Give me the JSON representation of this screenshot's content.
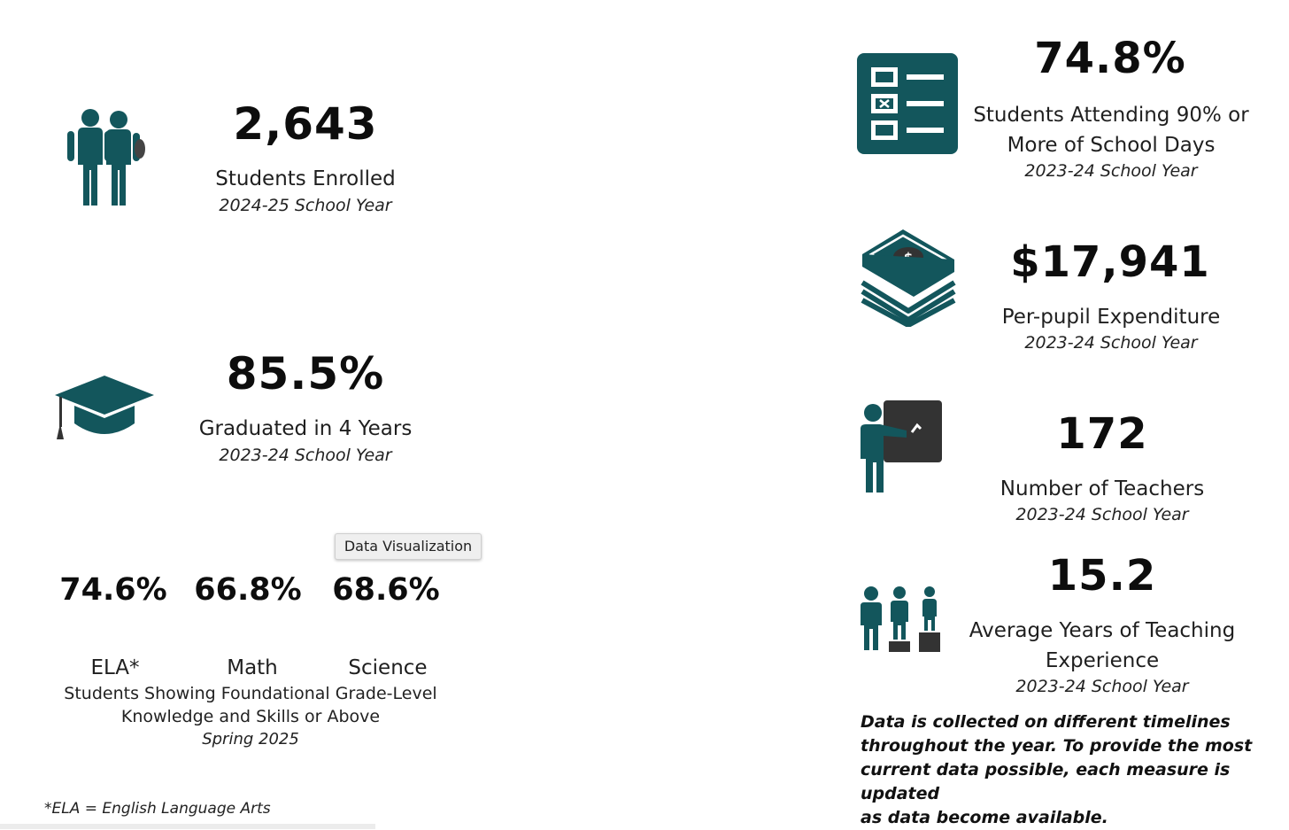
{
  "colors": {
    "icon_teal": "#13565c",
    "icon_dark": "#333333"
  },
  "left": {
    "enrolled": {
      "value": "2,643",
      "label": "Students Enrolled",
      "year": "2024-25 School Year",
      "icon": "students-icon"
    },
    "graduated": {
      "value": "85.5%",
      "label": "Graduated in 4 Years",
      "year": "2023-24 School Year",
      "icon": "graduation-cap-icon"
    },
    "tests": {
      "items": [
        {
          "value": "74.6%",
          "subject": "ELA*"
        },
        {
          "value": "66.8%",
          "subject": "Math"
        },
        {
          "value": "68.6%",
          "subject": "Science"
        }
      ],
      "desc_line1": "Students Showing Foundational Grade-Level",
      "desc_line2": "Knowledge and Skills or Above",
      "year": "Spring 2025"
    },
    "footnote": "*ELA = English Language Arts"
  },
  "tooltip": "Data Visualization",
  "right": {
    "attendance": {
      "value": "74.8%",
      "label_line1": "Students Attending 90% or",
      "label_line2": "More of School Days",
      "year": "2023-24 School Year",
      "icon": "checklist-icon"
    },
    "expenditure": {
      "value": "$17,941",
      "label": "Per-pupil Expenditure",
      "year": "2023-24 School Year",
      "icon": "money-stack-icon"
    },
    "teachers": {
      "value": "172",
      "label": "Number of Teachers",
      "year": "2023-24 School Year",
      "icon": "teacher-icon"
    },
    "experience": {
      "value": "15.2",
      "label_line1": "Average Years of Teaching",
      "label_line2": "Experience",
      "year": "2023-24 School Year",
      "icon": "podium-people-icon"
    },
    "note_lines": [
      "Data is collected on different timelines",
      "throughout the year. To provide the most",
      "current data possible, each measure is updated",
      "as data become available."
    ]
  }
}
